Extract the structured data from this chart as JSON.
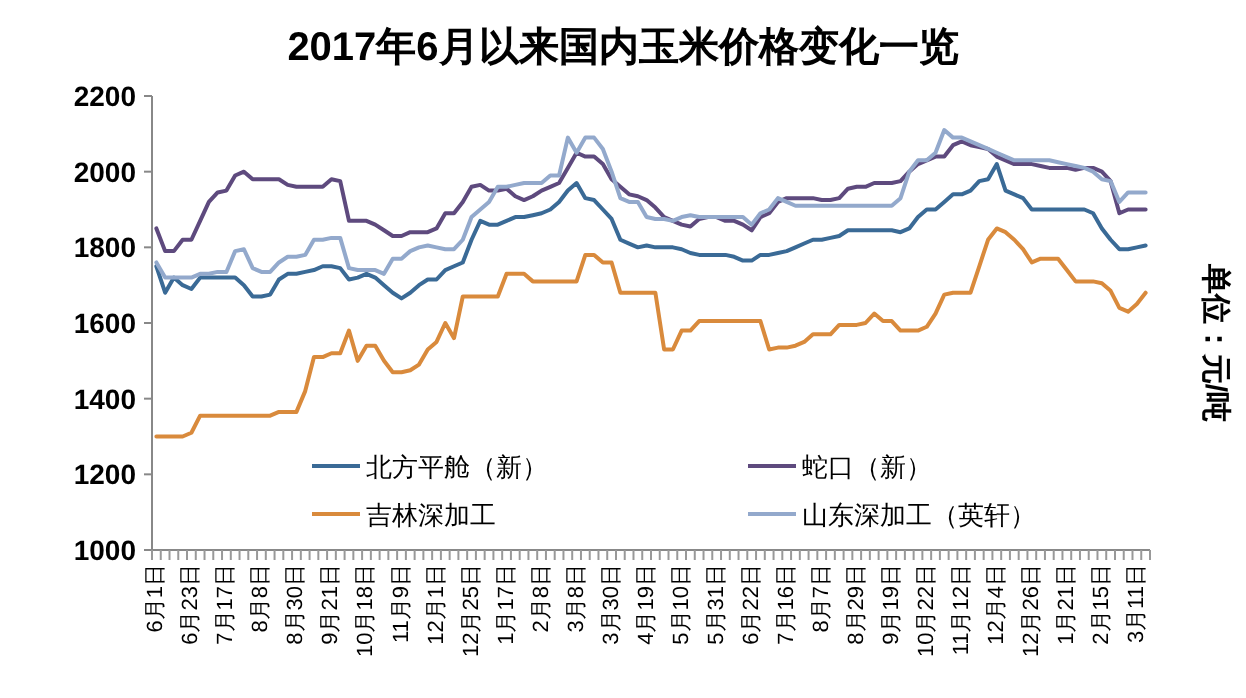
{
  "chart_data": {
    "type": "line",
    "title": "2017年6月以来国内玉米价格变化一览",
    "ylabel": "单位：元/吨",
    "legend": "bottom",
    "ylim": [
      1000,
      2200
    ],
    "yticks": [
      1000,
      1200,
      1400,
      1600,
      1800,
      2000,
      2200
    ],
    "categories": [
      "6月1日",
      null,
      null,
      null,
      "6月23日",
      null,
      null,
      null,
      "7月17日",
      null,
      null,
      null,
      "8月8日",
      null,
      null,
      null,
      "8月30日",
      null,
      null,
      null,
      "9月21日",
      null,
      null,
      null,
      "10月18日",
      null,
      null,
      null,
      "11月9日",
      null,
      null,
      null,
      "12月1日",
      null,
      null,
      null,
      "12月25日",
      null,
      null,
      null,
      "1月17日",
      null,
      null,
      null,
      "2月8日",
      null,
      null,
      null,
      "3月8日",
      null,
      null,
      null,
      "3月30日",
      null,
      null,
      null,
      "4月19日",
      null,
      null,
      null,
      "5月10日",
      null,
      null,
      null,
      "5月31日",
      null,
      null,
      null,
      "6月22日",
      null,
      null,
      null,
      "7月16日",
      null,
      null,
      null,
      "8月7日",
      null,
      null,
      null,
      "8月29日",
      null,
      null,
      null,
      "9月19日",
      null,
      null,
      null,
      "10月22日",
      null,
      null,
      null,
      "11月12日",
      null,
      null,
      null,
      "12月4日",
      null,
      null,
      null,
      "12月26日",
      null,
      null,
      null,
      "1月21日",
      null,
      null,
      null,
      "2月15日",
      null,
      null,
      null,
      "3月11日",
      null
    ],
    "series": [
      {
        "name": "北方平舱（新）",
        "color": "#3a6a96",
        "values": [
          1750,
          1680,
          1720,
          1700,
          1690,
          1720,
          1720,
          1720,
          1720,
          1720,
          1700,
          1670,
          1670,
          1675,
          1715,
          1730,
          1730,
          1735,
          1740,
          1750,
          1750,
          1745,
          1715,
          1720,
          1730,
          1720,
          1700,
          1680,
          1665,
          1680,
          1700,
          1715,
          1715,
          1740,
          1750,
          1760,
          1820,
          1870,
          1860,
          1860,
          1870,
          1880,
          1880,
          1885,
          1890,
          1900,
          1920,
          1950,
          1970,
          1930,
          1925,
          1900,
          1875,
          1820,
          1810,
          1800,
          1805,
          1800,
          1800,
          1800,
          1795,
          1785,
          1780,
          1780,
          1780,
          1780,
          1775,
          1765,
          1765,
          1780,
          1780,
          1785,
          1790,
          1800,
          1810,
          1820,
          1820,
          1825,
          1830,
          1845,
          1845,
          1845,
          1845,
          1845,
          1845,
          1840,
          1850,
          1880,
          1900,
          1900,
          1920,
          1940,
          1940,
          1950,
          1975,
          1980,
          2020,
          1950,
          1940,
          1930,
          1900,
          1900,
          1900,
          1900,
          1900,
          1900,
          1900,
          1890,
          1850,
          1820,
          1795,
          1795,
          1800,
          1805
        ]
      },
      {
        "name": "蛇口（新）",
        "color": "#5e4a7e",
        "values": [
          1850,
          1790,
          1790,
          1820,
          1820,
          1870,
          1920,
          1945,
          1950,
          1990,
          2000,
          1980,
          1980,
          1980,
          1980,
          1965,
          1960,
          1960,
          1960,
          1960,
          1980,
          1975,
          1870,
          1870,
          1870,
          1860,
          1845,
          1830,
          1830,
          1840,
          1840,
          1840,
          1850,
          1890,
          1890,
          1920,
          1960,
          1965,
          1950,
          1950,
          1955,
          1935,
          1925,
          1935,
          1950,
          1960,
          1970,
          2010,
          2050,
          2040,
          2040,
          2020,
          1980,
          1960,
          1940,
          1935,
          1925,
          1905,
          1880,
          1870,
          1860,
          1855,
          1875,
          1880,
          1880,
          1870,
          1870,
          1860,
          1845,
          1880,
          1890,
          1920,
          1930,
          1930,
          1930,
          1930,
          1925,
          1925,
          1930,
          1955,
          1960,
          1960,
          1970,
          1970,
          1970,
          1975,
          2000,
          2020,
          2030,
          2040,
          2040,
          2070,
          2080,
          2070,
          2065,
          2060,
          2040,
          2030,
          2020,
          2020,
          2020,
          2015,
          2010,
          2010,
          2010,
          2005,
          2010,
          2010,
          2000,
          1975,
          1890,
          1900,
          1900,
          1900
        ]
      },
      {
        "name": "吉林深加工",
        "color": "#d98a3c",
        "values": [
          1300,
          1300,
          1300,
          1300,
          1310,
          1355,
          1355,
          1355,
          1355,
          1355,
          1355,
          1355,
          1355,
          1355,
          1365,
          1365,
          1365,
          1420,
          1510,
          1510,
          1520,
          1520,
          1580,
          1500,
          1540,
          1540,
          1500,
          1470,
          1470,
          1475,
          1490,
          1530,
          1550,
          1600,
          1560,
          1670,
          1670,
          1670,
          1670,
          1670,
          1730,
          1730,
          1730,
          1710,
          1710,
          1710,
          1710,
          1710,
          1710,
          1780,
          1780,
          1760,
          1760,
          1680,
          1680,
          1680,
          1680,
          1680,
          1530,
          1530,
          1580,
          1580,
          1605,
          1605,
          1605,
          1605,
          1605,
          1605,
          1605,
          1605,
          1530,
          1535,
          1535,
          1540,
          1550,
          1570,
          1570,
          1570,
          1595,
          1595,
          1595,
          1600,
          1625,
          1605,
          1605,
          1580,
          1580,
          1580,
          1590,
          1625,
          1675,
          1680,
          1680,
          1680,
          1750,
          1820,
          1850,
          1840,
          1820,
          1795,
          1760,
          1770,
          1770,
          1770,
          1740,
          1710,
          1710,
          1710,
          1705,
          1685,
          1640,
          1630,
          1650,
          1680
        ]
      },
      {
        "name": "山东深加工（英轩）",
        "color": "#93a9cc",
        "values": [
          1760,
          1720,
          1720,
          1720,
          1720,
          1730,
          1730,
          1735,
          1735,
          1790,
          1795,
          1745,
          1735,
          1735,
          1760,
          1775,
          1775,
          1780,
          1820,
          1820,
          1825,
          1825,
          1745,
          1740,
          1740,
          1740,
          1730,
          1770,
          1770,
          1790,
          1800,
          1805,
          1800,
          1795,
          1795,
          1820,
          1880,
          1900,
          1920,
          1960,
          1960,
          1965,
          1970,
          1970,
          1970,
          1990,
          1990,
          2090,
          2050,
          2090,
          2090,
          2060,
          2000,
          1930,
          1920,
          1920,
          1880,
          1875,
          1875,
          1870,
          1880,
          1885,
          1880,
          1880,
          1880,
          1880,
          1880,
          1880,
          1860,
          1890,
          1900,
          1930,
          1920,
          1910,
          1910,
          1910,
          1910,
          1910,
          1910,
          1910,
          1910,
          1910,
          1910,
          1910,
          1910,
          1930,
          2000,
          2030,
          2030,
          2050,
          2110,
          2090,
          2090,
          2080,
          2070,
          2060,
          2050,
          2040,
          2030,
          2030,
          2030,
          2030,
          2030,
          2025,
          2020,
          2015,
          2010,
          2000,
          1980,
          1975,
          1920,
          1945,
          1945,
          1945
        ]
      }
    ]
  }
}
